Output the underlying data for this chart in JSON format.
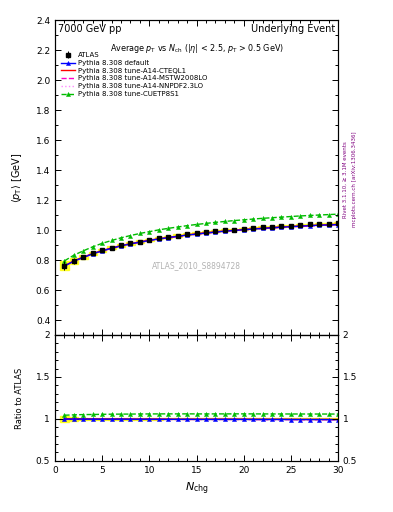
{
  "title_left": "7000 GeV pp",
  "title_right": "Underlying Event",
  "watermark": "ATLAS_2010_S8894728",
  "ylim_main": [
    0.3,
    2.4
  ],
  "ylim_ratio": [
    0.5,
    2.0
  ],
  "xlim": [
    0,
    30
  ],
  "nch": [
    1,
    2,
    3,
    4,
    5,
    6,
    7,
    8,
    9,
    10,
    11,
    12,
    13,
    14,
    15,
    16,
    17,
    18,
    19,
    20,
    21,
    22,
    23,
    24,
    25,
    26,
    27,
    28,
    29,
    30
  ],
  "atlas_y": [
    0.762,
    0.795,
    0.82,
    0.845,
    0.865,
    0.882,
    0.898,
    0.912,
    0.924,
    0.935,
    0.946,
    0.955,
    0.964,
    0.972,
    0.98,
    0.987,
    0.993,
    0.999,
    1.004,
    1.009,
    1.014,
    1.019,
    1.023,
    1.027,
    1.031,
    1.035,
    1.038,
    1.041,
    1.044,
    1.047
  ],
  "atlas_err": [
    0.03,
    0.018,
    0.013,
    0.011,
    0.01,
    0.009,
    0.009,
    0.008,
    0.008,
    0.008,
    0.008,
    0.007,
    0.007,
    0.007,
    0.007,
    0.007,
    0.007,
    0.007,
    0.006,
    0.006,
    0.006,
    0.006,
    0.006,
    0.006,
    0.006,
    0.006,
    0.006,
    0.006,
    0.006,
    0.006
  ],
  "default_y": [
    0.76,
    0.793,
    0.818,
    0.842,
    0.862,
    0.879,
    0.895,
    0.908,
    0.92,
    0.931,
    0.941,
    0.95,
    0.959,
    0.967,
    0.974,
    0.981,
    0.987,
    0.993,
    0.998,
    1.003,
    1.007,
    1.012,
    1.016,
    1.02,
    1.023,
    1.027,
    1.03,
    1.033,
    1.035,
    1.037
  ],
  "cteql1_y": [
    0.762,
    0.795,
    0.82,
    0.844,
    0.864,
    0.881,
    0.897,
    0.91,
    0.922,
    0.933,
    0.943,
    0.952,
    0.96,
    0.968,
    0.976,
    0.983,
    0.989,
    0.995,
    1.0,
    1.005,
    1.009,
    1.014,
    1.018,
    1.022,
    1.025,
    1.028,
    1.031,
    1.034,
    1.037,
    1.039
  ],
  "mstw_y": [
    0.761,
    0.793,
    0.818,
    0.842,
    0.861,
    0.878,
    0.894,
    0.907,
    0.919,
    0.93,
    0.94,
    0.949,
    0.957,
    0.965,
    0.973,
    0.98,
    0.986,
    0.992,
    0.997,
    1.002,
    1.006,
    1.01,
    1.014,
    1.018,
    1.022,
    1.025,
    1.028,
    1.031,
    1.034,
    1.036
  ],
  "nnpdf_y": [
    0.76,
    0.792,
    0.817,
    0.841,
    0.86,
    0.877,
    0.893,
    0.906,
    0.918,
    0.929,
    0.939,
    0.948,
    0.956,
    0.964,
    0.972,
    0.979,
    0.985,
    0.991,
    0.996,
    1.001,
    1.005,
    1.009,
    1.013,
    1.017,
    1.021,
    1.024,
    1.027,
    1.03,
    1.033,
    1.035
  ],
  "cuetp_y": [
    0.795,
    0.833,
    0.862,
    0.889,
    0.912,
    0.931,
    0.949,
    0.964,
    0.978,
    0.99,
    1.002,
    1.012,
    1.021,
    1.03,
    1.038,
    1.045,
    1.052,
    1.058,
    1.064,
    1.069,
    1.074,
    1.079,
    1.083,
    1.087,
    1.091,
    1.095,
    1.098,
    1.101,
    1.104,
    1.107
  ],
  "color_atlas": "#000000",
  "color_default": "#0000ff",
  "color_cteql1": "#ff0000",
  "color_mstw": "#ff00cc",
  "color_nnpdf": "#ff88ff",
  "color_cuetp": "#00bb00",
  "color_band": "#ffff00"
}
